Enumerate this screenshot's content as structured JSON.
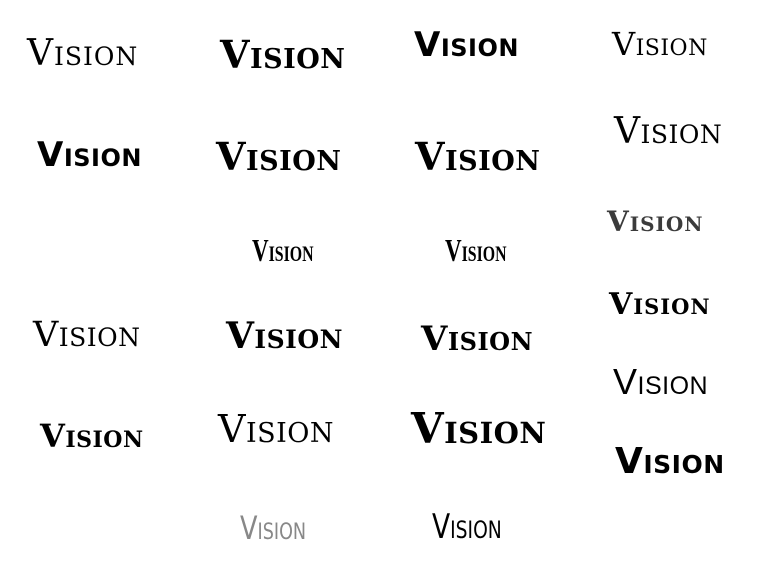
{
  "specimens": [
    {
      "text": "Vision"
    },
    {
      "text": "Vision"
    },
    {
      "text": "Vision"
    },
    {
      "text": "Vision"
    },
    {
      "text": "Vision"
    },
    {
      "text": "Vision"
    },
    {
      "text": "Vision"
    },
    {
      "text": "Vision"
    },
    {
      "text": "Vision"
    },
    {
      "text": "Vision"
    },
    {
      "text": "Vision"
    },
    {
      "text": "Vision"
    },
    {
      "text": "Vision"
    },
    {
      "text": "Vision"
    },
    {
      "text": "Vision"
    },
    {
      "text": "Vision"
    },
    {
      "text": "Vision"
    },
    {
      "text": "Vision"
    },
    {
      "text": "Vision"
    },
    {
      "text": "Vision"
    },
    {
      "text": "Vision"
    },
    {
      "text": "Vision"
    }
  ],
  "colors": {
    "background": "#ffffff",
    "text": "#000000",
    "light_gray": "#888888"
  }
}
